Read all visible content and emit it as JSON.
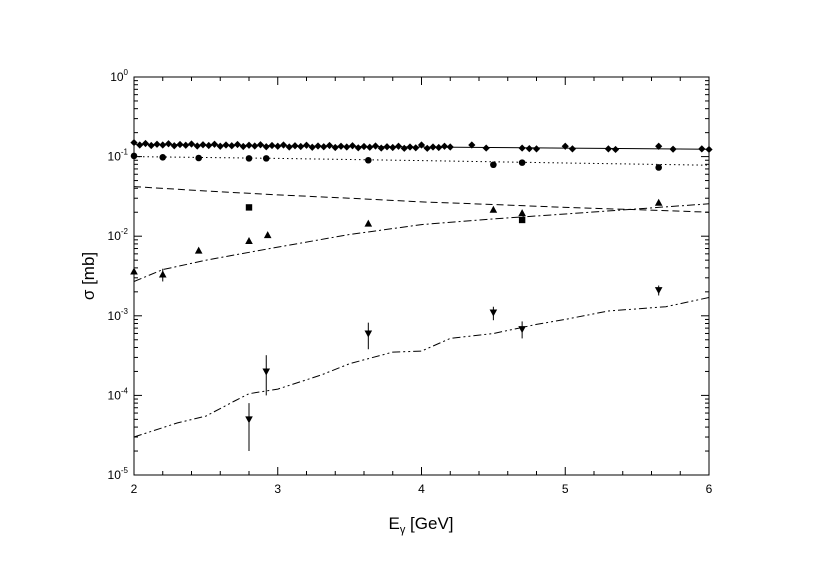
{
  "chart_data": {
    "type": "scatter",
    "title": "",
    "xlabel": {
      "main": "E",
      "sub": "γ",
      "unit": " [GeV]"
    },
    "ylabel": "σ [mb]",
    "xlim": [
      2,
      6
    ],
    "ylim": [
      1e-05,
      1
    ],
    "yscale": "log",
    "grid": false,
    "x_ticks": [
      "2",
      "3",
      "4",
      "5",
      "6"
    ],
    "y_ticks": [
      {
        "base": "10",
        "exp": "-5"
      },
      {
        "base": "10",
        "exp": "-4"
      },
      {
        "base": "10",
        "exp": "-3"
      },
      {
        "base": "10",
        "exp": "-2"
      },
      {
        "base": "10",
        "exp": "-1"
      },
      {
        "base": "10",
        "exp": "0"
      }
    ],
    "series": [
      {
        "marker": "diamond",
        "x": [
          2.0,
          2.04,
          2.08,
          2.12,
          2.16,
          2.2,
          2.24,
          2.28,
          2.32,
          2.36,
          2.4,
          2.44,
          2.48,
          2.52,
          2.56,
          2.6,
          2.64,
          2.68,
          2.72,
          2.76,
          2.8,
          2.84,
          2.88,
          2.92,
          2.96,
          3.0,
          3.04,
          3.08,
          3.12,
          3.16,
          3.2,
          3.24,
          3.28,
          3.32,
          3.36,
          3.4,
          3.44,
          3.48,
          3.52,
          3.56,
          3.6,
          3.64,
          3.68,
          3.72,
          3.76,
          3.8,
          3.84,
          3.88,
          3.92,
          3.96,
          4.0,
          4.04,
          4.08,
          4.12,
          4.16,
          4.2,
          4.35,
          4.45,
          4.7,
          4.75,
          4.8,
          5.0,
          5.05,
          5.3,
          5.35,
          5.65,
          5.75,
          5.95,
          6.0
        ],
        "y": [
          0.15,
          0.14,
          0.146,
          0.138,
          0.143,
          0.14,
          0.145,
          0.137,
          0.142,
          0.139,
          0.144,
          0.136,
          0.141,
          0.138,
          0.143,
          0.135,
          0.14,
          0.137,
          0.142,
          0.134,
          0.139,
          0.136,
          0.141,
          0.133,
          0.138,
          0.135,
          0.14,
          0.132,
          0.137,
          0.134,
          0.139,
          0.131,
          0.136,
          0.133,
          0.138,
          0.13,
          0.135,
          0.132,
          0.137,
          0.129,
          0.134,
          0.131,
          0.136,
          0.128,
          0.133,
          0.13,
          0.135,
          0.127,
          0.132,
          0.129,
          0.14,
          0.127,
          0.132,
          0.13,
          0.135,
          0.132,
          0.14,
          0.128,
          0.128,
          0.126,
          0.125,
          0.135,
          0.125,
          0.125,
          0.123,
          0.135,
          0.124,
          0.125,
          0.123
        ]
      },
      {
        "marker": "circle",
        "x": [
          2.0,
          2.2,
          2.45,
          2.8,
          2.92,
          3.63,
          4.5,
          4.7,
          5.65
        ],
        "y": [
          0.102,
          0.098,
          0.096,
          0.095,
          0.095,
          0.09,
          0.079,
          0.084,
          0.073
        ]
      },
      {
        "marker": "square",
        "x": [
          2.8,
          4.7
        ],
        "y": [
          0.023,
          0.016
        ]
      },
      {
        "marker": "triangle-up",
        "x": [
          2.0,
          2.2,
          2.45,
          2.8,
          2.93,
          3.63,
          4.5,
          4.7,
          5.65
        ],
        "y": [
          0.0036,
          0.0033,
          0.0066,
          0.0087,
          0.0103,
          0.0144,
          0.0215,
          0.0195,
          0.0263
        ],
        "y_err": [
          0,
          0.0006,
          0,
          0,
          0,
          0,
          0,
          0,
          0
        ]
      },
      {
        "marker": "triangle-down",
        "x": [
          2.8,
          2.92,
          3.63,
          4.5,
          4.7,
          5.65
        ],
        "y": [
          5e-05,
          0.0002,
          0.0006,
          0.0011,
          0.00068,
          0.0021
        ],
        "y_lo": [
          2e-05,
          0.0001,
          0.00038,
          0.00088,
          0.00052,
          0.0018
        ],
        "y_hi": [
          8e-05,
          0.00032,
          0.00082,
          0.0013,
          0.00085,
          0.0024
        ]
      }
    ],
    "curves": [
      {
        "style": "solid",
        "x": [
          2.0,
          3.0,
          4.0,
          5.0,
          6.0
        ],
        "y": [
          0.143,
          0.137,
          0.132,
          0.128,
          0.124
        ]
      },
      {
        "style": "dotted",
        "x": [
          2.0,
          3.0,
          4.0,
          5.0,
          6.0
        ],
        "y": [
          0.1,
          0.095,
          0.089,
          0.083,
          0.078
        ]
      },
      {
        "style": "dashed",
        "x": [
          2.0,
          2.5,
          3.0,
          3.5,
          4.0,
          4.5,
          5.0,
          5.5,
          6.0
        ],
        "y": [
          0.042,
          0.037,
          0.033,
          0.03,
          0.027,
          0.025,
          0.023,
          0.0215,
          0.02
        ]
      },
      {
        "style": "dashdot",
        "x": [
          2.0,
          2.2,
          2.5,
          3.0,
          3.5,
          4.0,
          4.5,
          5.0,
          5.5,
          6.0
        ],
        "y": [
          0.0027,
          0.0038,
          0.005,
          0.0073,
          0.0105,
          0.014,
          0.0165,
          0.019,
          0.022,
          0.0255
        ]
      },
      {
        "style": "dashdotdot",
        "x": [
          2.0,
          2.3,
          2.5,
          2.7,
          2.8,
          3.0,
          3.3,
          3.5,
          3.8,
          4.0,
          4.2,
          4.5,
          4.8,
          5.0,
          5.3,
          5.7,
          6.0
        ],
        "y": [
          3e-05,
          4.5e-05,
          5.5e-05,
          8.5e-05,
          0.000105,
          0.00012,
          0.00018,
          0.00025,
          0.00035,
          0.00036,
          0.00052,
          0.0006,
          0.00078,
          0.0009,
          0.00115,
          0.0013,
          0.0017
        ]
      }
    ]
  }
}
